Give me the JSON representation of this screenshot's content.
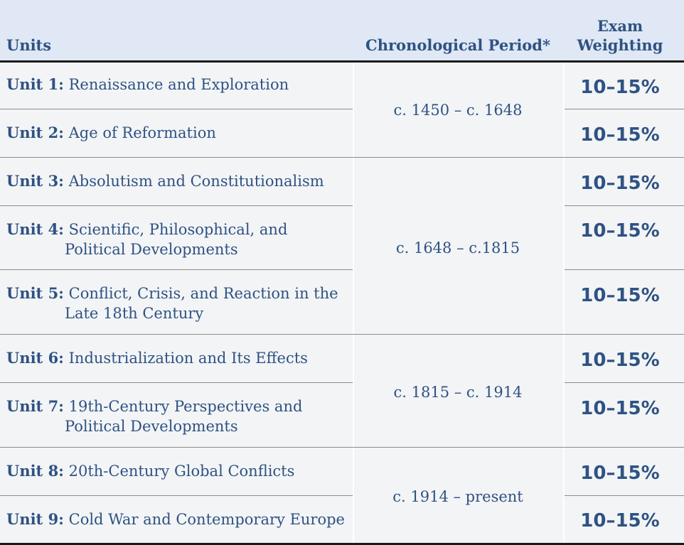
{
  "table": {
    "headers": {
      "units": "Units",
      "period": "Chronological Period*",
      "weighting": "Exam Weighting"
    },
    "periods": [
      "c. 1450 – c. 1648",
      "c. 1648 – c.1815",
      "c. 1815 – c. 1914",
      "c. 1914 – present"
    ],
    "units": [
      {
        "label": "Unit 1:",
        "title": "Renaissance and Exploration",
        "weighting": "10–15%"
      },
      {
        "label": "Unit 2:",
        "title": "Age of Reformation",
        "weighting": "10–15%"
      },
      {
        "label": "Unit 3:",
        "title": "Absolutism and Constitutionalism",
        "weighting": "10–15%"
      },
      {
        "label": "Unit 4:",
        "title": "Scientific, Philosophical, and Political Developments",
        "weighting": "10–15%"
      },
      {
        "label": "Unit 5:",
        "title": "Conflict, Crisis, and Reaction in the Late 18th Century",
        "weighting": "10–15%"
      },
      {
        "label": "Unit 6:",
        "title": "Industrialization and Its Effects",
        "weighting": "10–15%"
      },
      {
        "label": "Unit 7:",
        "title": "19th-Century Perspectives and Political Developments",
        "weighting": "10–15%"
      },
      {
        "label": "Unit 8:",
        "title": "20th-Century Global Conflicts",
        "weighting": "10–15%"
      },
      {
        "label": "Unit 9:",
        "title": "Cold War and Contemporary Europe",
        "weighting": "10–15%"
      }
    ]
  }
}
